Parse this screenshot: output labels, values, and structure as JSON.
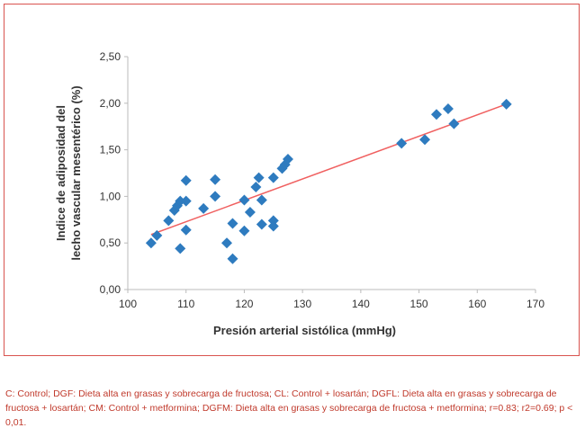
{
  "chart_data": {
    "type": "scatter",
    "title": "",
    "xlabel": "Presión arterial sistólica (mmHg)",
    "ylabel_lines": [
      "Indice de adiposidad del",
      "lecho vascular mesentérico (%)"
    ],
    "xlim": [
      100,
      170
    ],
    "ylim": [
      0,
      2.5
    ],
    "xticks": [
      "100",
      "110",
      "120",
      "130",
      "140",
      "150",
      "160",
      "170"
    ],
    "yticks": [
      "0,00",
      "0,50",
      "1,00",
      "1,50",
      "2,00",
      "2,50"
    ],
    "grid": false,
    "marker_color": "#2e7bbf",
    "trend_color": "#f06060",
    "points": [
      [
        104,
        0.5
      ],
      [
        105,
        0.58
      ],
      [
        107,
        0.74
      ],
      [
        108,
        0.85
      ],
      [
        108.5,
        0.9
      ],
      [
        109,
        0.95
      ],
      [
        109,
        0.44
      ],
      [
        110,
        0.95
      ],
      [
        110,
        1.17
      ],
      [
        110,
        0.64
      ],
      [
        113,
        0.87
      ],
      [
        115,
        1.18
      ],
      [
        115,
        1.0
      ],
      [
        117,
        0.5
      ],
      [
        118,
        0.71
      ],
      [
        118,
        0.33
      ],
      [
        120,
        0.63
      ],
      [
        120,
        0.96
      ],
      [
        121,
        0.83
      ],
      [
        122,
        1.1
      ],
      [
        122.5,
        1.2
      ],
      [
        123,
        0.96
      ],
      [
        123,
        0.7
      ],
      [
        125,
        1.2
      ],
      [
        125,
        0.74
      ],
      [
        125,
        0.68
      ],
      [
        126.5,
        1.3
      ],
      [
        127,
        1.34
      ],
      [
        127.5,
        1.4
      ],
      [
        147,
        1.57
      ],
      [
        151,
        1.61
      ],
      [
        153,
        1.88
      ],
      [
        155,
        1.94
      ],
      [
        156,
        1.78
      ],
      [
        165,
        1.99
      ]
    ],
    "trendline": [
      [
        104,
        0.59
      ],
      [
        165,
        1.99
      ]
    ]
  },
  "caption": "C: Control; DGF: Dieta alta en grasas y sobrecarga de fructosa; CL: Control + losartán; DGFL: Dieta alta en grasas y sobrecarga de fructosa + losartán; CM: Control + metformina; DGFM: Dieta alta en grasas y sobrecarga de fructosa + metformina; r=0.83; r2=0.69; p < 0,01."
}
